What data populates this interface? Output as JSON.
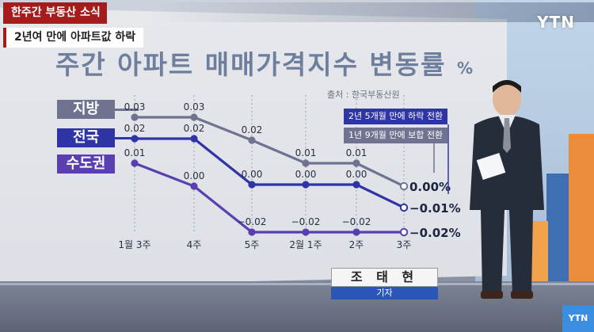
{
  "broadcast": {
    "banner_label": "한주간 부동산 소식",
    "headline": "2년여 만에 아파트값 하락",
    "channel_logo": "YTN",
    "corner_logo": "YTN"
  },
  "reporter": {
    "name": "조 태 현",
    "title": "기자"
  },
  "colors": {
    "regional": "#6f7390",
    "national": "#2f34a6",
    "capital": "#5a3fb0"
  },
  "chart_data": {
    "type": "line",
    "title": "주간 아파트 매매가격지수 변동률",
    "title_unit": "%",
    "source": "출처 : 한국부동산원",
    "categories": [
      "1월 3주",
      "4주",
      "5주",
      "2월 1주",
      "2주",
      "3주"
    ],
    "series": [
      {
        "name": "지방",
        "values": [
          0.03,
          0.03,
          0.02,
          0.01,
          0.01,
          0.0
        ],
        "labels": [
          "0.03",
          "0.03",
          "0.02",
          "0.01",
          "0.01",
          "0.00%"
        ]
      },
      {
        "name": "전국",
        "values": [
          0.02,
          0.02,
          0.0,
          0.0,
          0.0,
          -0.01
        ],
        "labels": [
          "0.02",
          "0.02",
          "0.00",
          "0.00",
          "0.00",
          "−0.01%"
        ]
      },
      {
        "name": "수도권",
        "values": [
          0.01,
          0.0,
          -0.02,
          -0.02,
          -0.02,
          -0.02
        ],
        "labels": [
          "0.01",
          "0.00",
          "−0.02",
          "−0.02",
          "−0.02",
          "−0.02%"
        ]
      }
    ],
    "annotations": [
      "2년 5개월 만에 하락 전환",
      "1년 9개월 만에 보합 전환"
    ],
    "ylim": [
      -0.03,
      0.04
    ]
  }
}
